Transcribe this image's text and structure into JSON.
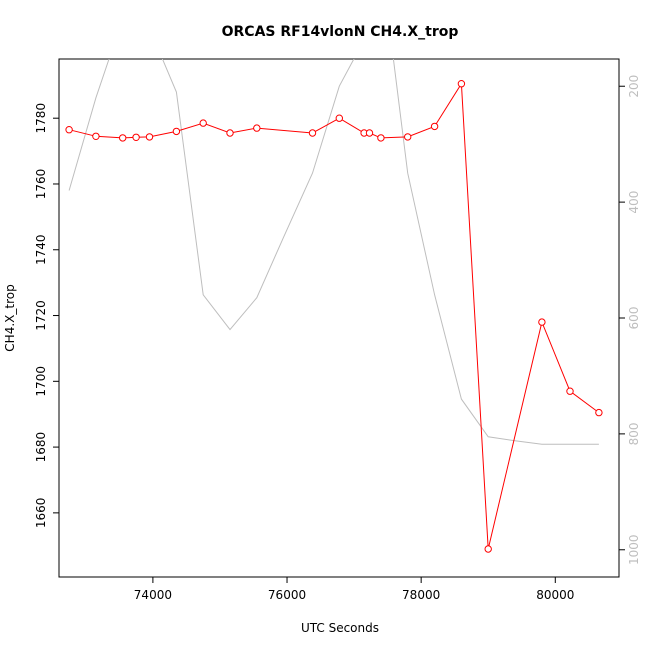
{
  "chart_data": {
    "type": "line",
    "title": "ORCAS RF14vlonN CH4.X_trop",
    "xlabel": "UTC Seconds",
    "ylabel": "CH4.X_trop",
    "xlim": [
      72600,
      80950
    ],
    "ylim": [
      1640.5,
      1798
    ],
    "y2lim": [
      1047,
      153
    ],
    "x_ticks": [
      74000,
      76000,
      78000,
      80000
    ],
    "x_tick_labels": [
      "74000",
      "76000",
      "78000",
      "80000"
    ],
    "y_ticks": [
      1660,
      1680,
      1700,
      1720,
      1740,
      1760,
      1780
    ],
    "y_tick_labels": [
      "1660",
      "1680",
      "1700",
      "1720",
      "1740",
      "1760",
      "1780"
    ],
    "y2_ticks": [
      200,
      400,
      600,
      800,
      1000
    ],
    "y2_tick_labels": [
      "200",
      "400",
      "600",
      "800",
      "1000"
    ],
    "grid": false,
    "colors": {
      "series": "#ff0000",
      "secondary": "#bebebe",
      "axis": "#000000"
    },
    "series": [
      {
        "axis": "left",
        "style": "line-with-open-circles",
        "color": "#ff0000",
        "x": [
          72750,
          73150,
          73550,
          73750,
          73950,
          74350,
          74750,
          75150,
          75550,
          76380,
          76780,
          77150,
          77230,
          77400,
          77800,
          78200,
          78600,
          79000,
          79800,
          80220,
          80650
        ],
        "values": [
          1776.5,
          1774.5,
          1774,
          1774.2,
          1774.3,
          1776,
          1778.5,
          1775.5,
          1777,
          1775.5,
          1780,
          1775.5,
          1775.5,
          1774,
          1774.3,
          1777.5,
          1790.5,
          1649,
          1718,
          1697,
          1690.5
        ]
      },
      {
        "axis": "right",
        "style": "line",
        "color": "#bebebe",
        "x": [
          72750,
          73150,
          73500,
          73950,
          74350,
          74750,
          75150,
          75550,
          75950,
          76380,
          76780,
          77150,
          77550,
          77800,
          78200,
          78600,
          79000,
          79400,
          79800,
          80220,
          80650
        ],
        "values": [
          380,
          220,
          100,
          100,
          210,
          560,
          620,
          565,
          460,
          350,
          200,
          120,
          120,
          350,
          560,
          740,
          805,
          812,
          818,
          818,
          818
        ]
      }
    ]
  }
}
